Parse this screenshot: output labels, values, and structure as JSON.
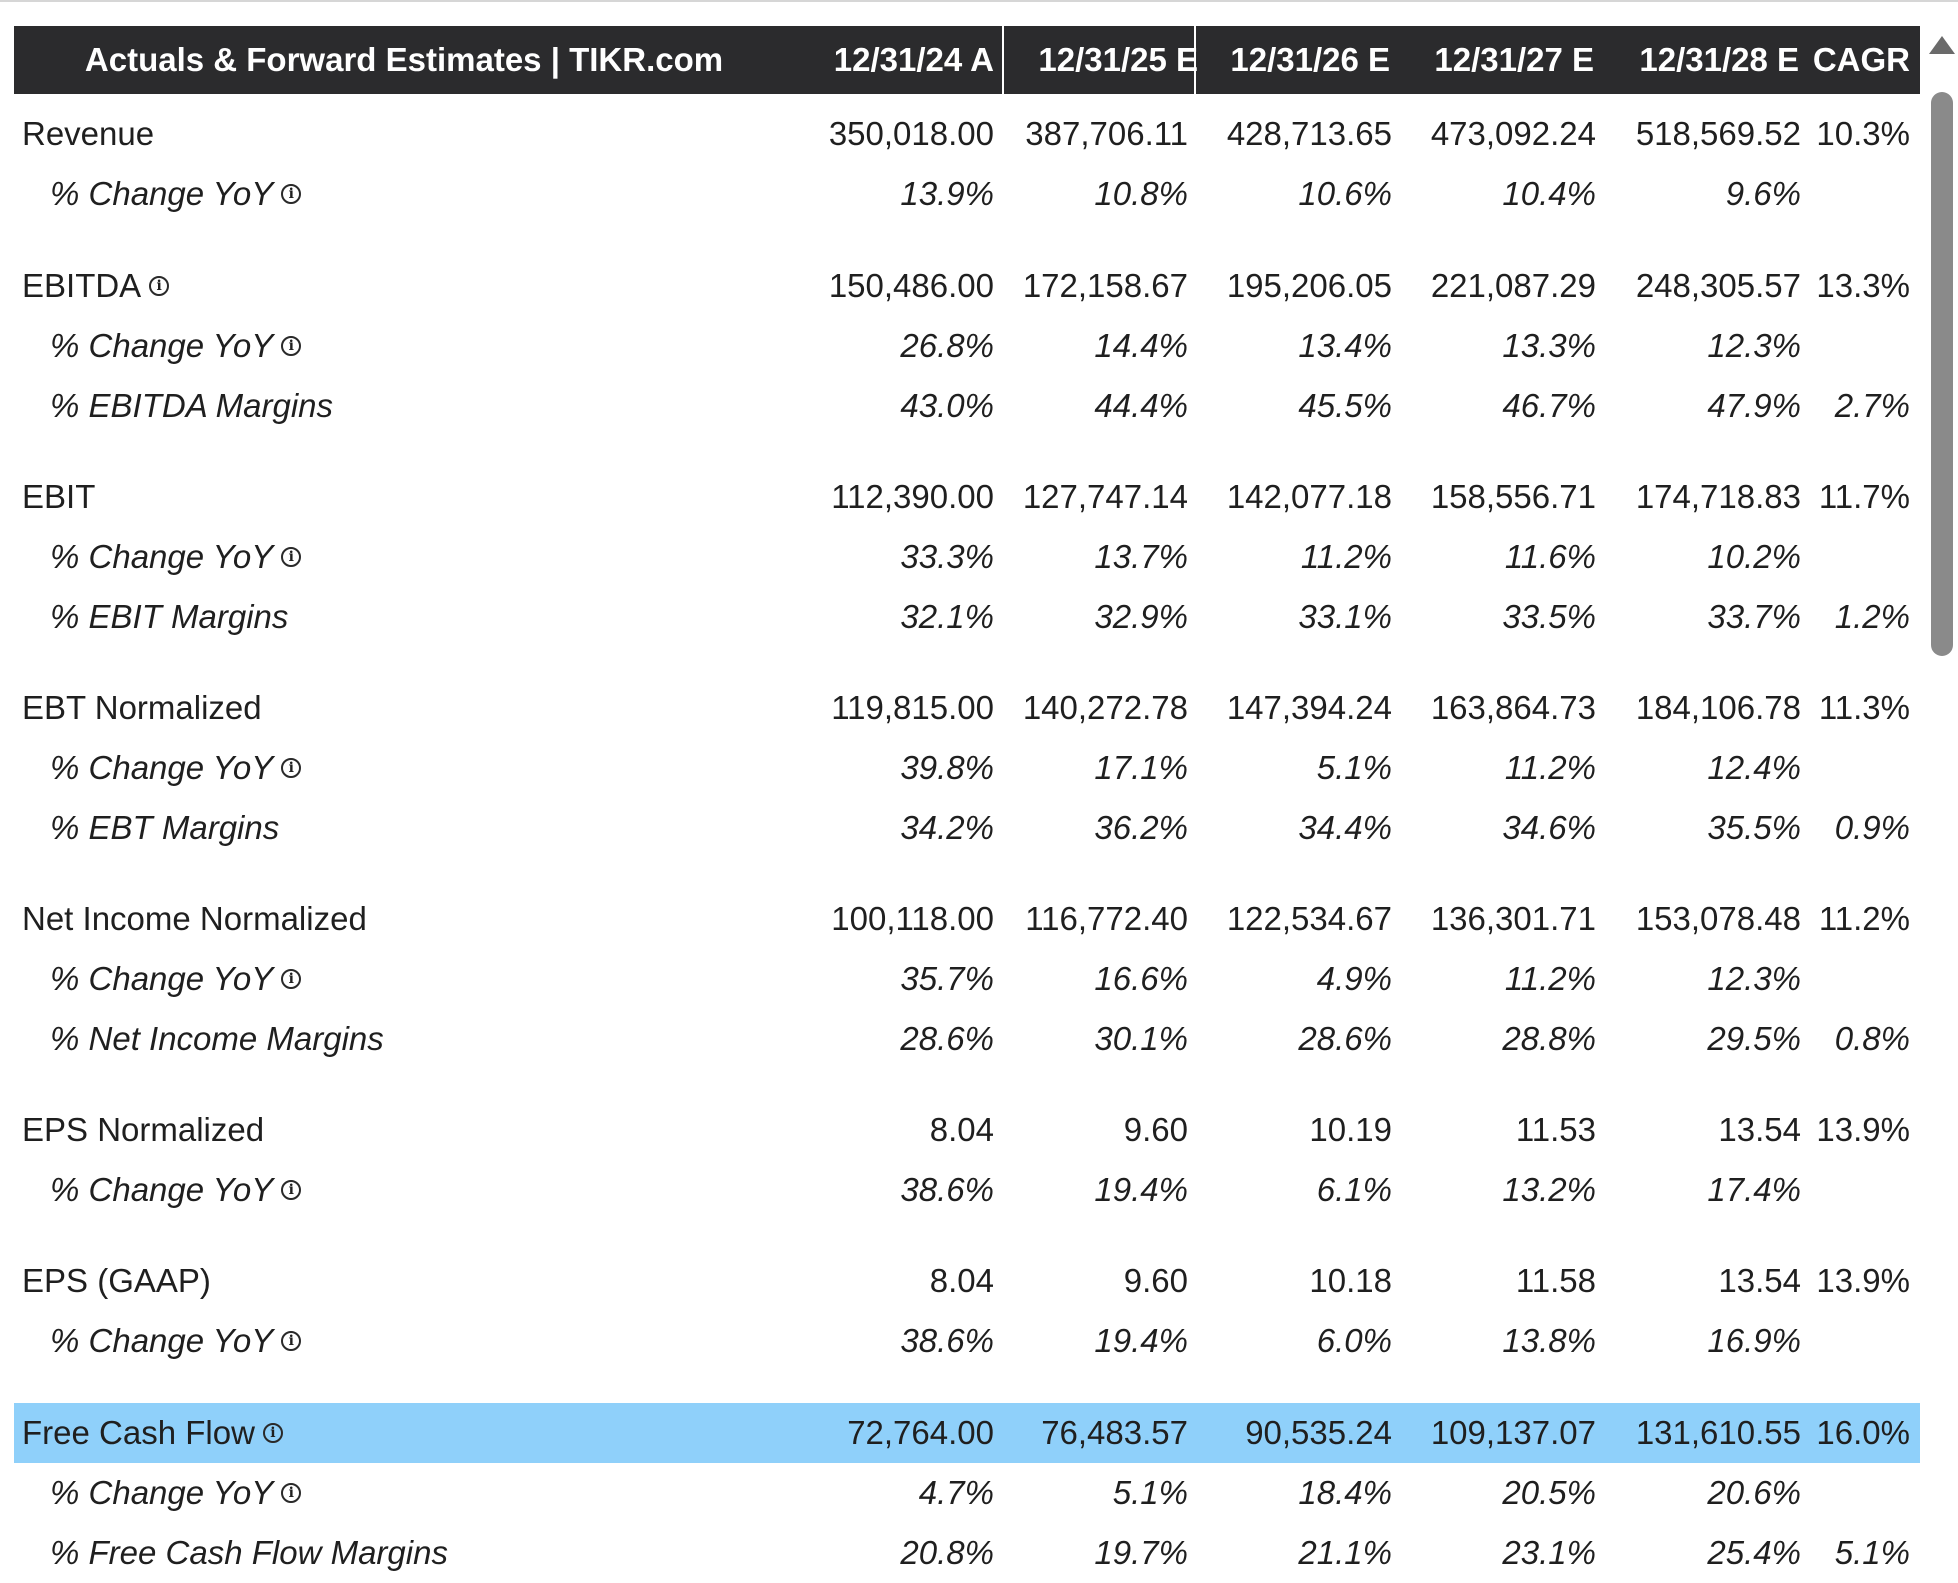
{
  "header": {
    "title": "Actuals & Forward Estimates | TIKR.com",
    "columns": [
      "12/31/24 A",
      "12/31/25 E",
      "12/31/26 E",
      "12/31/27 E",
      "12/31/28 E",
      "CAGR"
    ]
  },
  "rows": [
    {
      "label": "Revenue",
      "sub": false,
      "info": false,
      "highlight": false,
      "values": [
        "350,018.00",
        "387,706.11",
        "428,713.65",
        "473,092.24",
        "518,569.52",
        "10.3%"
      ]
    },
    {
      "label": "% Change YoY",
      "sub": true,
      "info": true,
      "highlight": false,
      "values": [
        "13.9%",
        "10.8%",
        "10.6%",
        "10.4%",
        "9.6%",
        ""
      ]
    },
    {
      "label": "EBITDA",
      "sub": false,
      "info": true,
      "highlight": false,
      "values": [
        "150,486.00",
        "172,158.67",
        "195,206.05",
        "221,087.29",
        "248,305.57",
        "13.3%"
      ]
    },
    {
      "label": "% Change YoY",
      "sub": true,
      "info": true,
      "highlight": false,
      "values": [
        "26.8%",
        "14.4%",
        "13.4%",
        "13.3%",
        "12.3%",
        ""
      ]
    },
    {
      "label": "% EBITDA Margins",
      "sub": true,
      "info": false,
      "highlight": false,
      "values": [
        "43.0%",
        "44.4%",
        "45.5%",
        "46.7%",
        "47.9%",
        "2.7%"
      ]
    },
    {
      "label": "EBIT",
      "sub": false,
      "info": false,
      "highlight": false,
      "values": [
        "112,390.00",
        "127,747.14",
        "142,077.18",
        "158,556.71",
        "174,718.83",
        "11.7%"
      ]
    },
    {
      "label": "% Change YoY",
      "sub": true,
      "info": true,
      "highlight": false,
      "values": [
        "33.3%",
        "13.7%",
        "11.2%",
        "11.6%",
        "10.2%",
        ""
      ]
    },
    {
      "label": "% EBIT Margins",
      "sub": true,
      "info": false,
      "highlight": false,
      "values": [
        "32.1%",
        "32.9%",
        "33.1%",
        "33.5%",
        "33.7%",
        "1.2%"
      ]
    },
    {
      "label": "EBT Normalized",
      "sub": false,
      "info": false,
      "highlight": false,
      "values": [
        "119,815.00",
        "140,272.78",
        "147,394.24",
        "163,864.73",
        "184,106.78",
        "11.3%"
      ]
    },
    {
      "label": "% Change YoY",
      "sub": true,
      "info": true,
      "highlight": false,
      "values": [
        "39.8%",
        "17.1%",
        "5.1%",
        "11.2%",
        "12.4%",
        ""
      ]
    },
    {
      "label": "% EBT Margins",
      "sub": true,
      "info": false,
      "highlight": false,
      "values": [
        "34.2%",
        "36.2%",
        "34.4%",
        "34.6%",
        "35.5%",
        "0.9%"
      ]
    },
    {
      "label": "Net Income Normalized",
      "sub": false,
      "info": false,
      "highlight": false,
      "values": [
        "100,118.00",
        "116,772.40",
        "122,534.67",
        "136,301.71",
        "153,078.48",
        "11.2%"
      ]
    },
    {
      "label": "% Change YoY",
      "sub": true,
      "info": true,
      "highlight": false,
      "values": [
        "35.7%",
        "16.6%",
        "4.9%",
        "11.2%",
        "12.3%",
        ""
      ]
    },
    {
      "label": "% Net Income Margins",
      "sub": true,
      "info": false,
      "highlight": false,
      "values": [
        "28.6%",
        "30.1%",
        "28.6%",
        "28.8%",
        "29.5%",
        "0.8%"
      ]
    },
    {
      "label": "EPS Normalized",
      "sub": false,
      "info": false,
      "highlight": false,
      "values": [
        "8.04",
        "9.60",
        "10.19",
        "11.53",
        "13.54",
        "13.9%"
      ]
    },
    {
      "label": "% Change YoY",
      "sub": true,
      "info": true,
      "highlight": false,
      "values": [
        "38.6%",
        "19.4%",
        "6.1%",
        "13.2%",
        "17.4%",
        ""
      ]
    },
    {
      "label": "EPS (GAAP)",
      "sub": false,
      "info": false,
      "highlight": false,
      "values": [
        "8.04",
        "9.60",
        "10.18",
        "11.58",
        "13.54",
        "13.9%"
      ]
    },
    {
      "label": "% Change YoY",
      "sub": true,
      "info": true,
      "highlight": false,
      "values": [
        "38.6%",
        "19.4%",
        "6.0%",
        "13.8%",
        "16.9%",
        ""
      ]
    },
    {
      "label": "Free Cash Flow",
      "sub": false,
      "info": true,
      "highlight": true,
      "values": [
        "72,764.00",
        "76,483.57",
        "90,535.24",
        "109,137.07",
        "131,610.55",
        "16.0%"
      ]
    },
    {
      "label": "% Change YoY",
      "sub": true,
      "info": true,
      "highlight": false,
      "values": [
        "4.7%",
        "5.1%",
        "18.4%",
        "20.5%",
        "20.6%",
        ""
      ]
    },
    {
      "label": "% Free Cash Flow Margins",
      "sub": true,
      "info": false,
      "highlight": false,
      "values": [
        "20.8%",
        "19.7%",
        "21.1%",
        "23.1%",
        "25.4%",
        "5.1%"
      ]
    }
  ],
  "icons": {
    "info": "info-icon",
    "scroll_up": "scroll-up-arrow-icon"
  },
  "colors": {
    "header_bg": "#2b2b2d",
    "header_text": "#ffffff",
    "highlight_row": "#8fd0fa",
    "text": "#1f1f1f"
  }
}
